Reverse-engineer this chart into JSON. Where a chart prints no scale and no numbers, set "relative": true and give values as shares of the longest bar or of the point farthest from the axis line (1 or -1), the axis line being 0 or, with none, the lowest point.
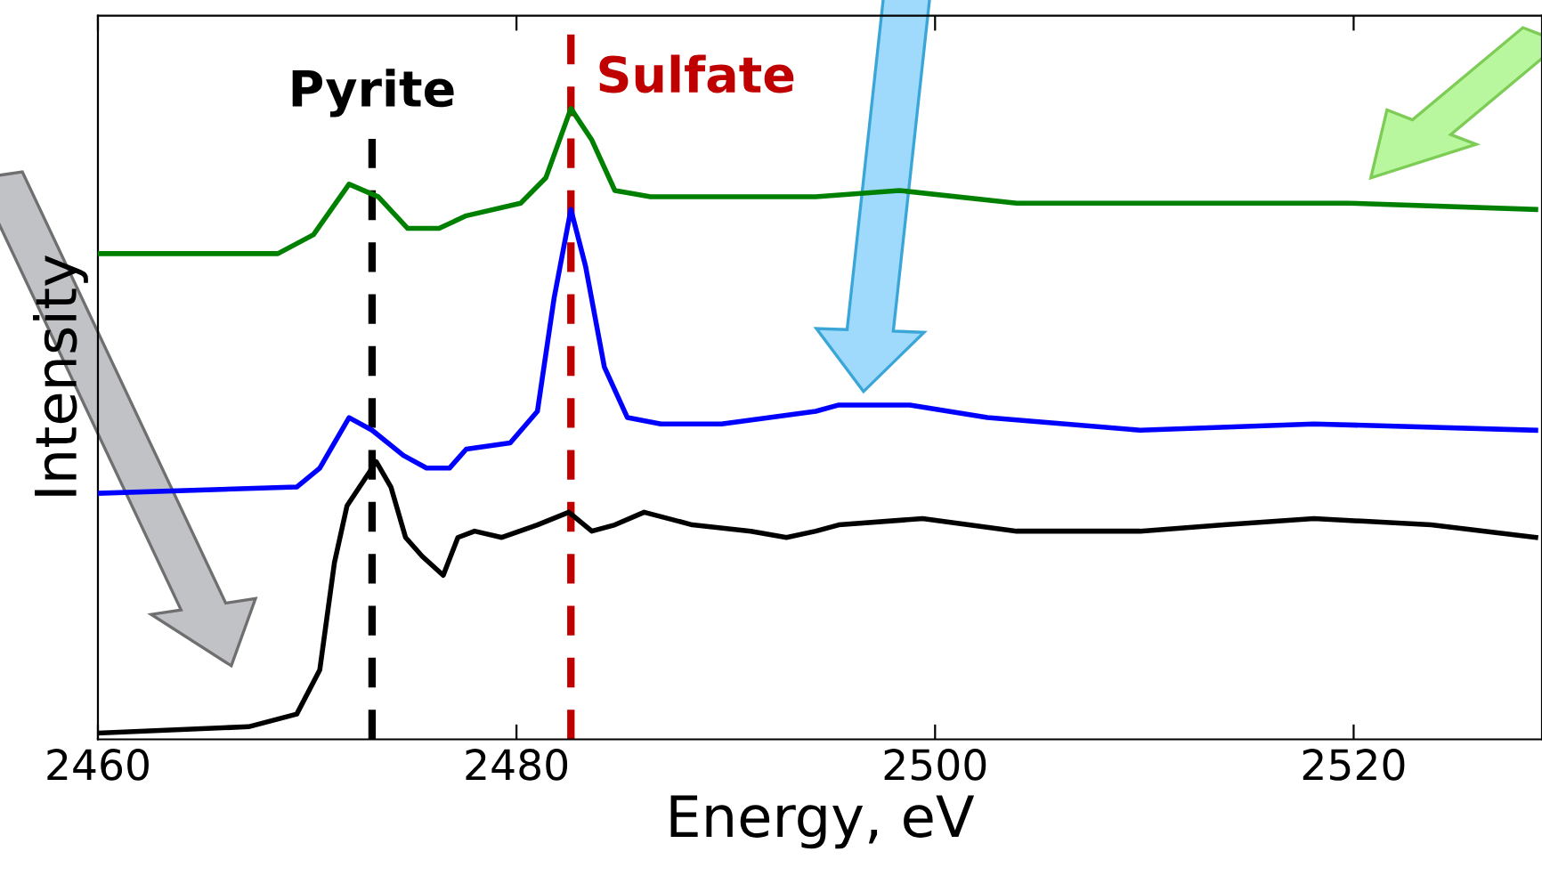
{
  "chart_data": {
    "type": "line",
    "relative": true,
    "xlabel": "Energy, eV",
    "ylabel": "Intensity",
    "xlim": [
      2460,
      2529
    ],
    "xticks": [
      2460,
      2480,
      2500,
      2520
    ],
    "tick_labels": "x",
    "grid": false,
    "legend": false,
    "marker": "none",
    "line_style": "solid",
    "series": [
      {
        "color": "#000000",
        "x": [
          2460.0,
          2467.2,
          2469.5,
          2470.6,
          2471.3,
          2471.9,
          2472.5,
          2473.3,
          2474.0,
          2474.7,
          2475.5,
          2476.5,
          2477.2,
          2478.0,
          2479.3,
          2481.0,
          2482.5,
          2483.6,
          2484.7,
          2486.1,
          2488.4,
          2491.2,
          2492.9,
          2494.3,
          2495.4,
          2499.4,
          2503.9,
          2509.8,
          2513.8,
          2518.1,
          2523.7,
          2528.7
        ],
        "values": [
          0.01,
          0.02,
          0.04,
          0.11,
          0.28,
          0.37,
          0.4,
          0.44,
          0.4,
          0.32,
          0.29,
          0.26,
          0.32,
          0.33,
          0.32,
          0.34,
          0.36,
          0.33,
          0.34,
          0.36,
          0.34,
          0.33,
          0.32,
          0.33,
          0.34,
          0.35,
          0.33,
          0.33,
          0.34,
          0.35,
          0.34,
          0.32
        ]
      },
      {
        "color": "#0000ff",
        "x": [
          2460.0,
          2469.5,
          2470.6,
          2472.0,
          2473.1,
          2474.6,
          2475.7,
          2476.8,
          2477.6,
          2479.7,
          2481.0,
          2481.8,
          2482.6,
          2483.3,
          2484.2,
          2485.3,
          2486.9,
          2489.8,
          2494.3,
          2495.4,
          2498.8,
          2502.5,
          2509.8,
          2518.1,
          2528.7
        ],
        "values": [
          0.39,
          0.4,
          0.43,
          0.51,
          0.49,
          0.45,
          0.43,
          0.43,
          0.46,
          0.47,
          0.52,
          0.7,
          0.84,
          0.75,
          0.59,
          0.51,
          0.5,
          0.5,
          0.52,
          0.53,
          0.53,
          0.51,
          0.49,
          0.5,
          0.49
        ]
      },
      {
        "color": "#008000",
        "x": [
          2460.0,
          2468.6,
          2470.3,
          2472.0,
          2473.4,
          2474.8,
          2476.3,
          2477.6,
          2480.2,
          2481.4,
          2482.6,
          2483.6,
          2484.7,
          2486.4,
          2494.3,
          2498.3,
          2503.9,
          2509.8,
          2519.7,
          2528.7
        ],
        "values": [
          0.77,
          0.77,
          0.8,
          0.88,
          0.86,
          0.81,
          0.81,
          0.83,
          0.85,
          0.89,
          1.0,
          0.95,
          0.87,
          0.86,
          0.86,
          0.87,
          0.85,
          0.85,
          0.85,
          0.84
        ]
      }
    ],
    "ref_lines": [
      {
        "axis": "x",
        "value": 2473.1,
        "label": "Pyrite",
        "color": "#000000",
        "line_style": "dashed"
      },
      {
        "axis": "x",
        "value": 2482.6,
        "label": "Sulfate",
        "color": "#c00000",
        "line_style": "dashed"
      }
    ]
  }
}
